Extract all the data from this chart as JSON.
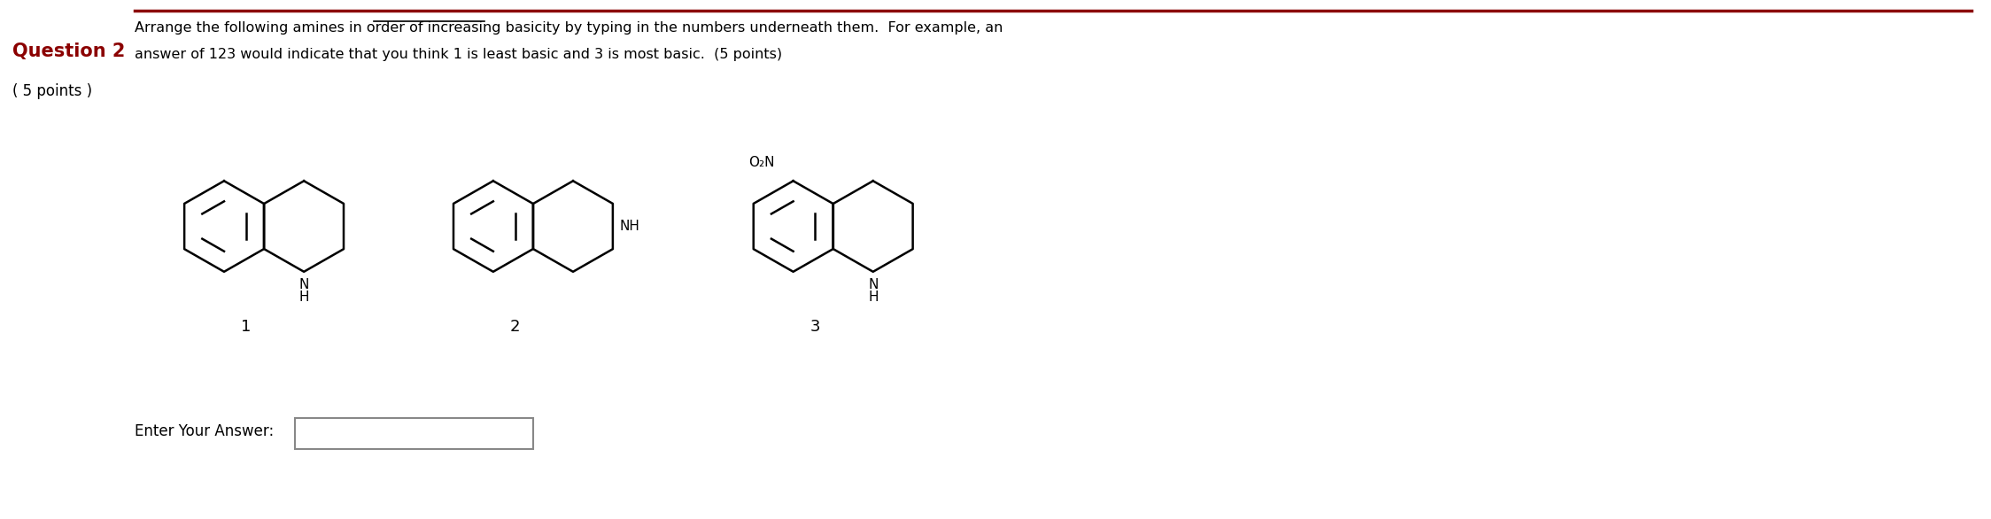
{
  "background_color": "#ffffff",
  "title_color": "#8B0000",
  "text_color": "#000000",
  "question_label": "Question 2",
  "points_label": "( 5 points )",
  "instruction_line1": "Arrange the following amines in order of increasing basicity by typing in the numbers underneath them.  For example, an",
  "instruction_line2": "answer of 123 would indicate that you think 1 is least basic and 3 is most basic.  (5 points)",
  "underlined_text": "increasing basicity",
  "compound_numbers": [
    "1",
    "2",
    "3"
  ],
  "compound3_substituent": "O₂N",
  "enter_answer_label": "Enter Your Answer:",
  "top_line_color": "#8B0000",
  "figsize": [
    22.48,
    5.86
  ],
  "dpi": 100
}
